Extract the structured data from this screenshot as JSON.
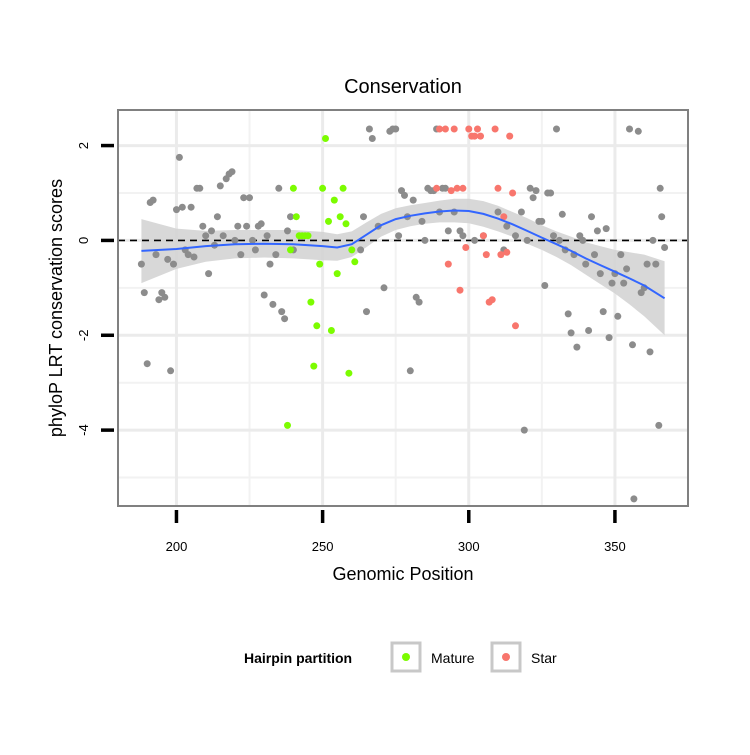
{
  "chart_data": {
    "type": "scatter",
    "title": "Conservation",
    "xlabel": "Genomic Position",
    "ylabel": "phyloP LRT conservation scores",
    "xlim": [
      180,
      375
    ],
    "ylim": [
      -5.6,
      2.75
    ],
    "x_ticks": [
      200,
      250,
      300,
      350
    ],
    "y_ticks": [
      2,
      0,
      -2,
      -4
    ],
    "x_minor_grid": [
      225,
      275,
      325
    ],
    "y_minor_grid": [
      1,
      -1,
      -3,
      -5
    ],
    "grid": true,
    "reference_line": {
      "y": 0,
      "style": "dashed"
    },
    "legend": {
      "title": "Hairpin partition",
      "position": "bottom",
      "entries": [
        {
          "label": "Mature",
          "color": "#7CFC00"
        },
        {
          "label": "Star",
          "color": "#F8766D"
        }
      ]
    },
    "colors": {
      "other": "#8c8c8c",
      "Mature": "#7CFC00",
      "Star": "#F8766D",
      "smooth_line": "#3366FF",
      "ribbon": "#d4d4d4"
    },
    "series": [
      {
        "group": "other",
        "points": [
          [
            188,
            -0.5
          ],
          [
            189,
            -1.1
          ],
          [
            190,
            -2.6
          ],
          [
            191,
            0.8
          ],
          [
            192,
            0.85
          ],
          [
            193,
            -0.3
          ],
          [
            194,
            -1.25
          ],
          [
            195,
            -1.1
          ],
          [
            196,
            -1.2
          ],
          [
            197,
            -0.4
          ],
          [
            198,
            -2.75
          ],
          [
            199,
            -0.5
          ],
          [
            200,
            0.65
          ],
          [
            201,
            1.75
          ],
          [
            202,
            0.7
          ],
          [
            203,
            -0.2
          ],
          [
            204,
            -0.3
          ],
          [
            205,
            0.7
          ],
          [
            206,
            -0.35
          ],
          [
            207,
            1.1
          ],
          [
            208,
            1.1
          ],
          [
            209,
            0.3
          ],
          [
            210,
            0.1
          ],
          [
            211,
            -0.7
          ],
          [
            212,
            0.2
          ],
          [
            213,
            -0.1
          ],
          [
            214,
            0.5
          ],
          [
            215,
            1.15
          ],
          [
            216,
            0.1
          ],
          [
            217,
            1.3
          ],
          [
            218,
            1.4
          ],
          [
            219,
            1.45
          ],
          [
            220,
            0.0
          ],
          [
            221,
            0.3
          ],
          [
            222,
            -0.3
          ],
          [
            223,
            0.9
          ],
          [
            224,
            0.3
          ],
          [
            225,
            0.9
          ],
          [
            226,
            0.0
          ],
          [
            227,
            -0.2
          ],
          [
            228,
            0.3
          ],
          [
            229,
            0.35
          ],
          [
            230,
            -1.15
          ],
          [
            231,
            0.1
          ],
          [
            232,
            -0.5
          ],
          [
            233,
            -1.35
          ],
          [
            234,
            -0.3
          ],
          [
            235,
            1.1
          ],
          [
            236,
            -1.5
          ],
          [
            237,
            -1.65
          ],
          [
            238,
            0.2
          ],
          [
            239,
            0.5
          ],
          [
            240,
            -0.2
          ],
          [
            263,
            -0.2
          ],
          [
            264,
            0.5
          ],
          [
            265,
            -1.5
          ],
          [
            266,
            2.35
          ],
          [
            267,
            2.15
          ],
          [
            269,
            0.3
          ],
          [
            271,
            -1.0
          ],
          [
            273,
            2.3
          ],
          [
            274,
            2.35
          ],
          [
            275,
            2.35
          ],
          [
            276,
            0.1
          ],
          [
            277,
            1.05
          ],
          [
            278,
            0.95
          ],
          [
            279,
            0.5
          ],
          [
            280,
            -2.75
          ],
          [
            281,
            0.85
          ],
          [
            282,
            -1.2
          ],
          [
            283,
            -1.3
          ],
          [
            284,
            0.4
          ],
          [
            285,
            0.0
          ],
          [
            286,
            1.1
          ],
          [
            287,
            1.05
          ],
          [
            288,
            1.05
          ],
          [
            289,
            2.35
          ],
          [
            290,
            0.6
          ],
          [
            291,
            1.1
          ],
          [
            292,
            1.1
          ],
          [
            293,
            0.2
          ],
          [
            295,
            0.6
          ],
          [
            297,
            0.2
          ],
          [
            298,
            0.1
          ],
          [
            302,
            0.0
          ],
          [
            305,
            0.1
          ],
          [
            310,
            0.6
          ],
          [
            312,
            -0.2
          ],
          [
            313,
            0.3
          ],
          [
            316,
            0.1
          ],
          [
            318,
            0.6
          ],
          [
            319,
            -4.0
          ],
          [
            320,
            0.0
          ],
          [
            321,
            1.1
          ],
          [
            322,
            0.9
          ],
          [
            323,
            1.05
          ],
          [
            324,
            0.4
          ],
          [
            325,
            0.4
          ],
          [
            326,
            -0.95
          ],
          [
            327,
            1.0
          ],
          [
            328,
            1.0
          ],
          [
            329,
            0.1
          ],
          [
            330,
            2.35
          ],
          [
            331,
            0.0
          ],
          [
            332,
            0.55
          ],
          [
            333,
            -0.2
          ],
          [
            334,
            -1.55
          ],
          [
            335,
            -1.95
          ],
          [
            336,
            -0.3
          ],
          [
            337,
            -2.25
          ],
          [
            338,
            0.1
          ],
          [
            339,
            0.0
          ],
          [
            340,
            -0.5
          ],
          [
            341,
            -1.9
          ],
          [
            342,
            0.5
          ],
          [
            343,
            -0.3
          ],
          [
            344,
            0.2
          ],
          [
            345,
            -0.7
          ],
          [
            346,
            -1.5
          ],
          [
            347,
            0.25
          ],
          [
            348,
            -2.05
          ],
          [
            349,
            -0.9
          ],
          [
            350,
            -0.7
          ],
          [
            351,
            -1.6
          ],
          [
            352,
            -0.3
          ],
          [
            353,
            -0.9
          ],
          [
            354,
            -0.6
          ],
          [
            355,
            2.35
          ],
          [
            356,
            -2.2
          ],
          [
            356.5,
            -5.45
          ],
          [
            358,
            2.3
          ],
          [
            359,
            -1.1
          ],
          [
            360,
            -1.0
          ],
          [
            361,
            -0.5
          ],
          [
            362,
            -2.35
          ],
          [
            363,
            0.0
          ],
          [
            364,
            -0.5
          ],
          [
            365,
            -3.9
          ],
          [
            365.5,
            1.1
          ],
          [
            366,
            0.5
          ],
          [
            367,
            -0.15
          ]
        ]
      },
      {
        "group": "Mature",
        "points": [
          [
            238,
            -3.9
          ],
          [
            239,
            -0.2
          ],
          [
            240,
            1.1
          ],
          [
            241,
            0.5
          ],
          [
            242,
            0.1
          ],
          [
            243,
            0.1
          ],
          [
            244,
            0.1
          ],
          [
            245,
            0.1
          ],
          [
            246,
            -1.3
          ],
          [
            247,
            -2.65
          ],
          [
            248,
            -1.8
          ],
          [
            249,
            -0.5
          ],
          [
            250,
            1.1
          ],
          [
            251,
            2.15
          ],
          [
            252,
            0.4
          ],
          [
            253,
            -1.9
          ],
          [
            254,
            0.85
          ],
          [
            255,
            -0.7
          ],
          [
            256,
            0.5
          ],
          [
            257,
            1.1
          ],
          [
            258,
            0.35
          ],
          [
            259,
            -2.8
          ],
          [
            260,
            -0.2
          ],
          [
            261,
            -0.45
          ]
        ]
      },
      {
        "group": "Star",
        "points": [
          [
            289,
            1.1
          ],
          [
            290,
            2.35
          ],
          [
            292,
            2.35
          ],
          [
            293,
            -0.5
          ],
          [
            294,
            1.05
          ],
          [
            295,
            2.35
          ],
          [
            296,
            1.1
          ],
          [
            297,
            -1.05
          ],
          [
            298,
            1.1
          ],
          [
            299,
            -0.15
          ],
          [
            300,
            2.35
          ],
          [
            301,
            2.2
          ],
          [
            302,
            2.2
          ],
          [
            303,
            2.35
          ],
          [
            304,
            2.2
          ],
          [
            305,
            0.1
          ],
          [
            306,
            -0.3
          ],
          [
            307,
            -1.3
          ],
          [
            308,
            -1.25
          ],
          [
            309,
            2.35
          ],
          [
            310,
            1.1
          ],
          [
            311,
            -0.3
          ],
          [
            312,
            0.5
          ],
          [
            313,
            -0.25
          ],
          [
            314,
            2.2
          ],
          [
            315,
            1.0
          ],
          [
            316,
            -1.8
          ]
        ]
      }
    ],
    "smooth": {
      "x": [
        188,
        200,
        210,
        220,
        230,
        240,
        250,
        255,
        260,
        265,
        270,
        275,
        280,
        285,
        290,
        295,
        300,
        305,
        310,
        315,
        320,
        325,
        330,
        335,
        340,
        345,
        350,
        355,
        360,
        367
      ],
      "y": [
        -0.22,
        -0.18,
        -0.12,
        -0.08,
        -0.07,
        -0.08,
        -0.12,
        -0.15,
        -0.08,
        0.12,
        0.32,
        0.45,
        0.52,
        0.57,
        0.61,
        0.63,
        0.62,
        0.56,
        0.46,
        0.34,
        0.2,
        0.06,
        -0.08,
        -0.22,
        -0.38,
        -0.52,
        -0.66,
        -0.8,
        -0.95,
        -1.22
      ],
      "lower": [
        -0.9,
        -0.6,
        -0.45,
        -0.38,
        -0.36,
        -0.38,
        -0.42,
        -0.43,
        -0.35,
        -0.14,
        0.08,
        0.22,
        0.3,
        0.35,
        0.38,
        0.38,
        0.36,
        0.29,
        0.19,
        0.08,
        -0.07,
        -0.2,
        -0.35,
        -0.52,
        -0.72,
        -0.92,
        -1.12,
        -1.35,
        -1.6,
        -2.0
      ],
      "upper": [
        0.45,
        0.25,
        0.2,
        0.22,
        0.22,
        0.22,
        0.18,
        0.13,
        0.19,
        0.38,
        0.56,
        0.68,
        0.74,
        0.79,
        0.84,
        0.88,
        0.88,
        0.83,
        0.73,
        0.6,
        0.47,
        0.32,
        0.19,
        0.08,
        -0.04,
        -0.12,
        -0.2,
        -0.25,
        -0.3,
        -0.44
      ]
    }
  }
}
